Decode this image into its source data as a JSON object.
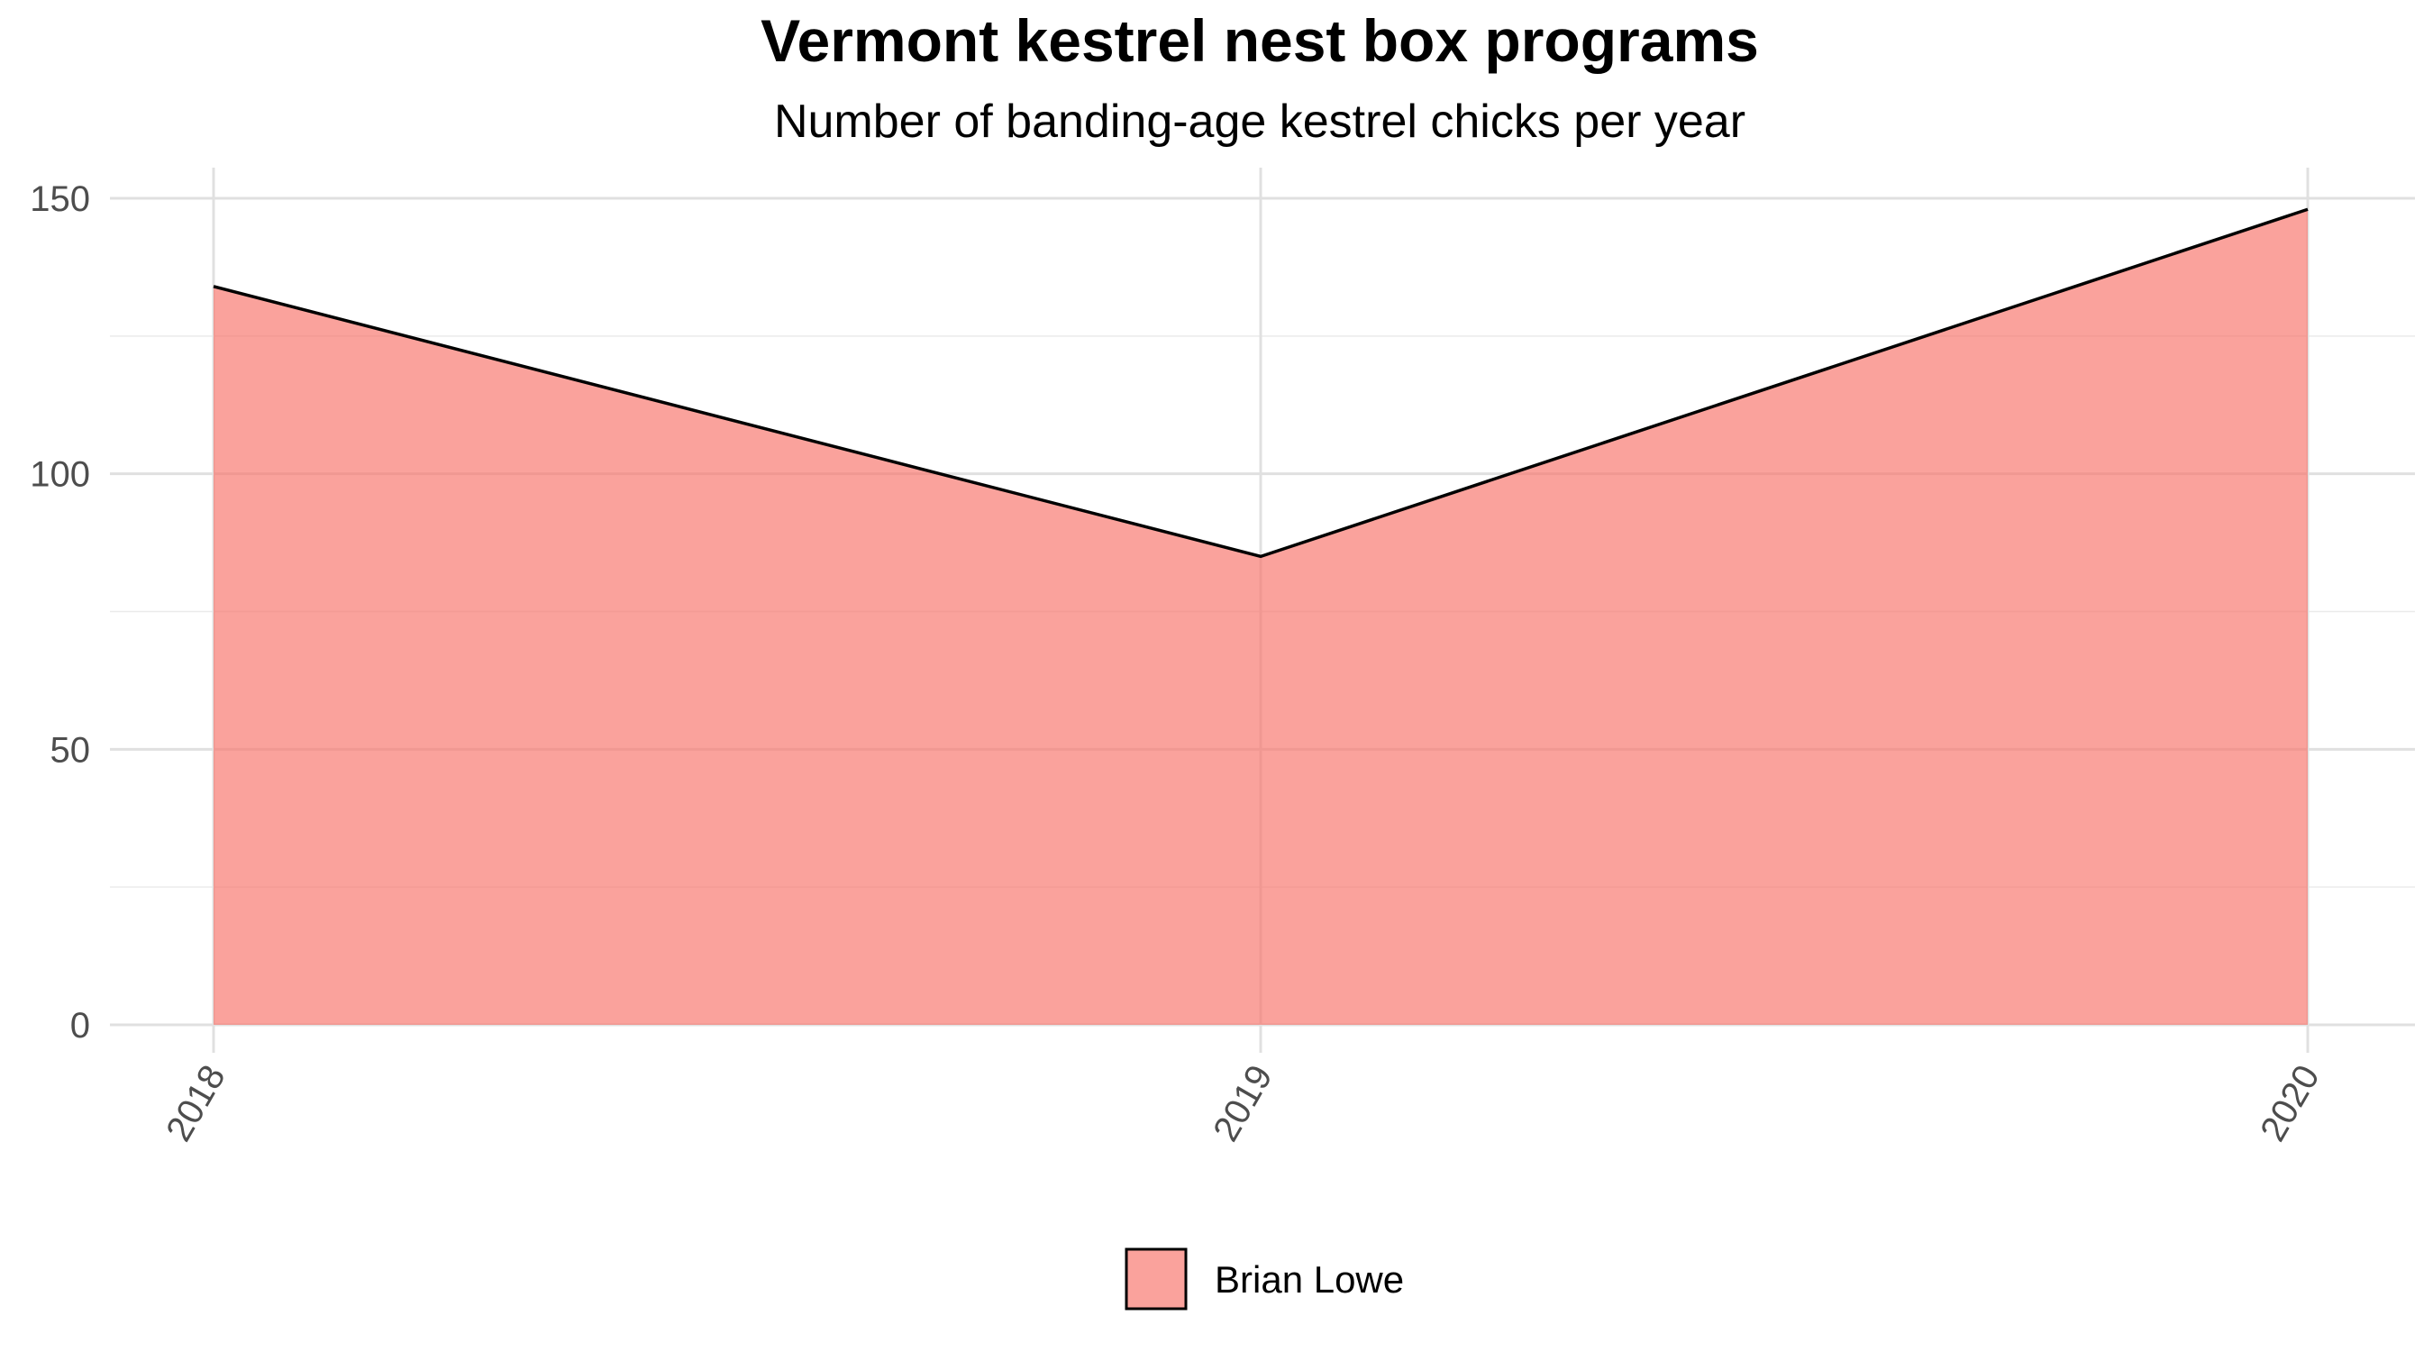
{
  "chart_data": {
    "type": "area",
    "title": "Vermont kestrel nest box programs",
    "subtitle": "Number of banding-age kestrel chicks per year",
    "xlabel": "",
    "ylabel": "",
    "categories": [
      "2018",
      "2019",
      "2020"
    ],
    "series": [
      {
        "name": "Brian Lowe",
        "values": [
          134,
          85,
          148
        ],
        "color": "#F8766D"
      }
    ],
    "ylim": [
      0,
      155
    ],
    "y_ticks": [
      "0",
      "50",
      "100",
      "150"
    ],
    "x_tick_rotation": "rotated",
    "grid": true,
    "legend_position": "bottom"
  }
}
